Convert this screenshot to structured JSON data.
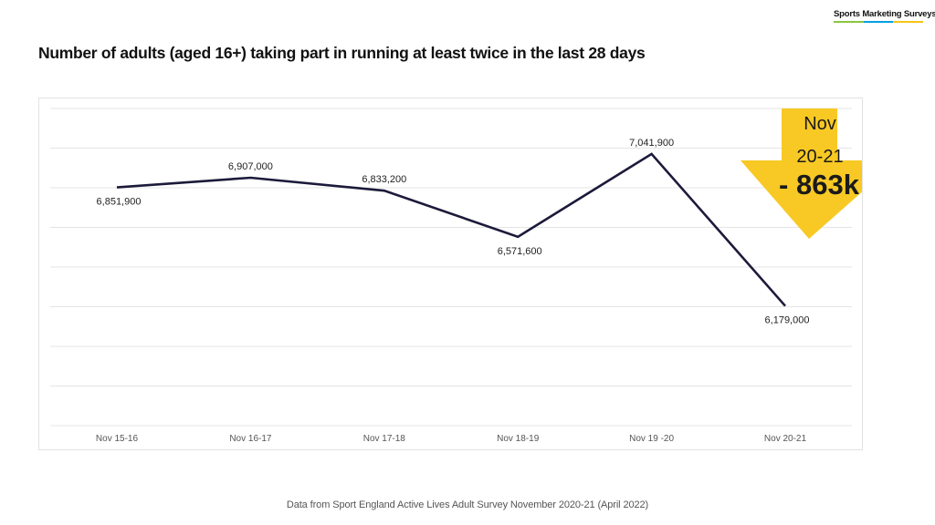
{
  "brand": {
    "name": "Sports Marketing Surveys",
    "stripe_colors": [
      "#8cc63f",
      "#00a0e0",
      "#f5c518"
    ]
  },
  "title": "Number of adults (aged 16+) taking part in running at least twice in the last 28 days",
  "footer": "Data from Sport England Active Lives Adult Survey November 2020-21 (April 2022)",
  "callout": {
    "line1": "Nov",
    "line2": "20-21",
    "value": "- 863k",
    "color": "#f8c924"
  },
  "chart_data": {
    "type": "line",
    "title": "Number of adults (aged 16+) taking part in running at least twice in the last 28 days",
    "xlabel": "",
    "ylabel": "",
    "categories": [
      "Nov 15-16",
      "Nov 16-17",
      "Nov 17-18",
      "Nov 18-19",
      "Nov 19 -20",
      "Nov 20-21"
    ],
    "values": [
      6851900,
      6907000,
      6833200,
      6571600,
      7041900,
      6179000
    ],
    "data_labels": [
      "6,851,900",
      "6,907,000",
      "6,833,200",
      "6,571,600",
      "7,041,900",
      "6,179,000"
    ],
    "label_position": [
      "below",
      "above",
      "above",
      "below",
      "above",
      "below"
    ],
    "ylim": [
      5500000,
      7300000
    ],
    "grid_lines": 9,
    "grid": true,
    "line_color": "#1c1a3a",
    "grid_color": "#e4e4e4"
  }
}
